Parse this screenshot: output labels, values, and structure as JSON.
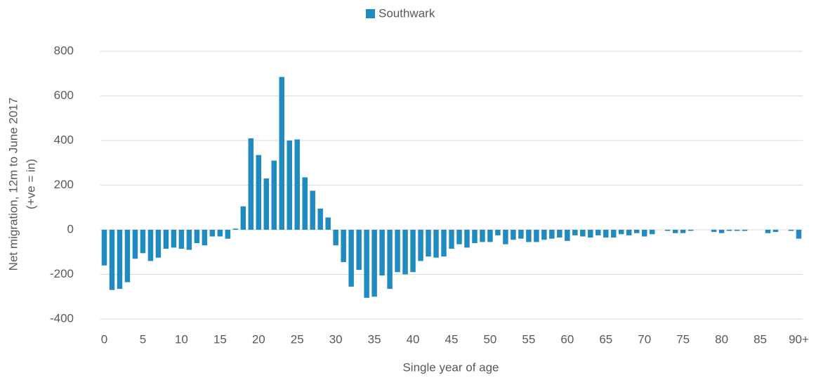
{
  "chart_data": {
    "type": "bar",
    "legend": "Southwark",
    "xlabel": "Single year of age",
    "ylabel": [
      "Net migration, 12m to June 2017",
      "(+ve = in)"
    ],
    "color": "#1f8bc1",
    "categories": [
      "0",
      null,
      null,
      null,
      null,
      "5",
      null,
      null,
      null,
      null,
      "10",
      null,
      null,
      null,
      null,
      "15",
      null,
      null,
      null,
      null,
      "20",
      null,
      null,
      null,
      null,
      "25",
      null,
      null,
      null,
      null,
      "30",
      null,
      null,
      null,
      null,
      "35",
      null,
      null,
      null,
      null,
      "40",
      null,
      null,
      null,
      null,
      "45",
      null,
      null,
      null,
      null,
      "50",
      null,
      null,
      null,
      null,
      "55",
      null,
      null,
      null,
      null,
      "60",
      null,
      null,
      null,
      null,
      "65",
      null,
      null,
      null,
      null,
      "70",
      null,
      null,
      null,
      null,
      "75",
      null,
      null,
      null,
      null,
      "80",
      null,
      null,
      null,
      null,
      "85",
      null,
      null,
      null,
      null,
      "90+"
    ],
    "values": [
      -160,
      -270,
      -265,
      -235,
      -130,
      -105,
      -140,
      -125,
      -85,
      -80,
      -85,
      -90,
      -60,
      -70,
      -30,
      -30,
      -40,
      5,
      105,
      410,
      335,
      230,
      310,
      685,
      400,
      405,
      235,
      175,
      95,
      55,
      -70,
      -145,
      -255,
      -180,
      -305,
      -300,
      -205,
      -265,
      -190,
      -200,
      -190,
      -140,
      -120,
      -125,
      -120,
      -85,
      -65,
      -80,
      -60,
      -55,
      -55,
      -25,
      -65,
      -45,
      -40,
      -55,
      -55,
      -45,
      -40,
      -35,
      -50,
      -25,
      -30,
      -35,
      -25,
      -35,
      -35,
      -20,
      -25,
      -15,
      -30,
      -20,
      0,
      -5,
      -15,
      -15,
      -5,
      0,
      0,
      -10,
      -15,
      -5,
      -5,
      -5,
      0,
      0,
      -15,
      -10,
      0,
      -5,
      -40
    ],
    "ylim": [
      -400,
      800
    ],
    "yticks": [
      -400,
      -200,
      0,
      200,
      400,
      600,
      800
    ],
    "grid": true
  }
}
